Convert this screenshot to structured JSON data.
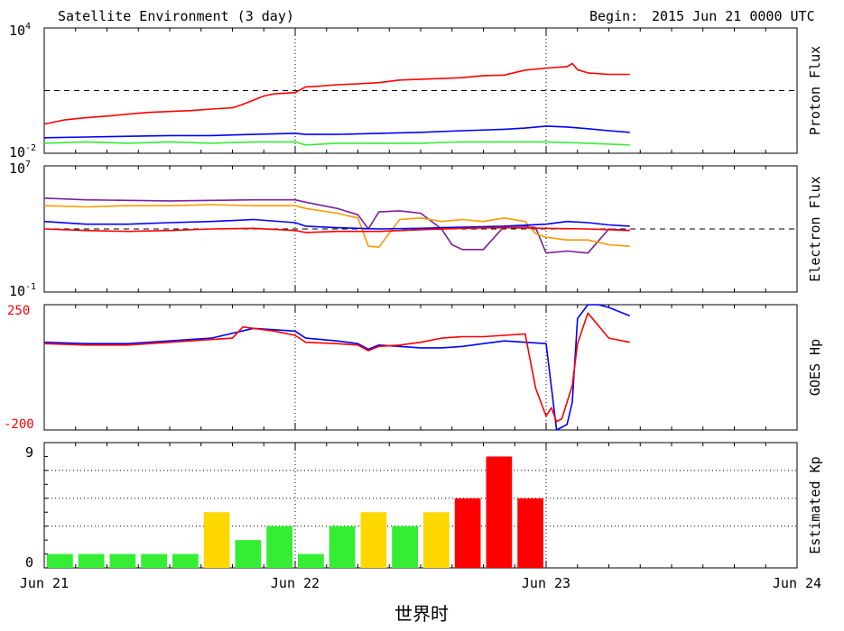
{
  "header": {
    "title": "Satellite Environment (3 day)",
    "begin_label": "Begin:",
    "begin_value": "2015 Jun 21 0000 UTC"
  },
  "xaxis": {
    "tick_labels": [
      "Jun 21",
      "Jun 22",
      "Jun 23",
      "Jun 24"
    ],
    "title": "世界时"
  },
  "chart_data": [
    {
      "type": "line",
      "panel": "proton",
      "ylabel": "Proton Flux",
      "y_scale": "log",
      "ylim": [
        0.01,
        10000
      ],
      "tick_label_top": {
        "base": "10",
        "exp": "4"
      },
      "tick_label_bottom": {
        "base": "10",
        "exp": "-2"
      },
      "threshold": 10,
      "x_unit": "hours since Jun 21 0000 UTC",
      "xlim": [
        0,
        72
      ],
      "gap": [
        23.9,
        24.5
      ],
      "series": [
        {
          "color": "#ff0000",
          "x": [
            0,
            2,
            4,
            6,
            8,
            10,
            12,
            14,
            16,
            18,
            19,
            20,
            21,
            22,
            23,
            24,
            25,
            26,
            28,
            30,
            32,
            34,
            36,
            38,
            40,
            42,
            44,
            46,
            48,
            50,
            50.5,
            51,
            52,
            54,
            56
          ],
          "y": [
            0.25,
            0.4,
            0.5,
            0.6,
            0.75,
            0.9,
            1.0,
            1.1,
            1.3,
            1.5,
            2.2,
            3.5,
            5.5,
            7,
            7.5,
            8,
            15,
            16,
            19,
            21,
            24,
            32,
            35,
            38,
            42,
            52,
            55,
            95,
            120,
            140,
            200,
            100,
            70,
            60,
            60
          ]
        },
        {
          "color": "#0000ff",
          "x": [
            0,
            4,
            8,
            12,
            16,
            20,
            24,
            25,
            28,
            32,
            36,
            40,
            44,
            46,
            48,
            50,
            52,
            54,
            56
          ],
          "y": [
            0.055,
            0.06,
            0.065,
            0.07,
            0.07,
            0.08,
            0.09,
            0.08,
            0.08,
            0.09,
            0.1,
            0.12,
            0.14,
            0.16,
            0.2,
            0.18,
            0.15,
            0.12,
            0.1
          ]
        },
        {
          "color": "#33ee33",
          "x": [
            0,
            4,
            8,
            12,
            16,
            20,
            24,
            25,
            28,
            32,
            36,
            40,
            44,
            48,
            52,
            56
          ],
          "y": [
            0.03,
            0.035,
            0.03,
            0.035,
            0.03,
            0.035,
            0.035,
            0.025,
            0.03,
            0.03,
            0.03,
            0.035,
            0.035,
            0.035,
            0.03,
            0.025
          ]
        }
      ]
    },
    {
      "type": "line",
      "panel": "electron",
      "ylabel": "Electron Flux",
      "y_scale": "log",
      "ylim": [
        0.1,
        10000000
      ],
      "tick_label_top": {
        "base": "10",
        "exp": "7"
      },
      "tick_label_bottom": {
        "base": "10",
        "exp": "-1"
      },
      "threshold": 1000,
      "x_unit": "hours since Jun 21 0000 UTC",
      "xlim": [
        0,
        72
      ],
      "gap": [
        23.9,
        24.5
      ],
      "series": [
        {
          "color": "#7a1fa2",
          "x": [
            0,
            4,
            8,
            12,
            16,
            20,
            24,
            25,
            28,
            30,
            31,
            32,
            34,
            36,
            38,
            39,
            40,
            42,
            44,
            46,
            47,
            48,
            50,
            52,
            54,
            56
          ],
          "y": [
            90000,
            70000,
            65000,
            60000,
            65000,
            70000,
            70000,
            50000,
            20000,
            8000,
            1000,
            12000,
            14000,
            10000,
            1000,
            100,
            50,
            50,
            1500,
            1500,
            1200,
            30,
            40,
            30,
            1000,
            800
          ]
        },
        {
          "color": "#ff9900",
          "x": [
            0,
            4,
            8,
            12,
            16,
            20,
            24,
            25,
            28,
            30,
            31,
            32,
            34,
            36,
            38,
            40,
            42,
            44,
            46,
            47,
            48,
            50,
            52,
            54,
            56
          ],
          "y": [
            30000,
            25000,
            30000,
            30000,
            35000,
            30000,
            30000,
            20000,
            10000,
            5000,
            80,
            70,
            4000,
            5000,
            3000,
            4000,
            3000,
            5000,
            3000,
            500,
            300,
            200,
            200,
            100,
            80
          ]
        },
        {
          "color": "#0000ff",
          "x": [
            0,
            4,
            8,
            12,
            16,
            20,
            24,
            25,
            28,
            32,
            36,
            40,
            44,
            48,
            50,
            52,
            54,
            56
          ],
          "y": [
            3000,
            2000,
            2000,
            2500,
            3000,
            4000,
            2500,
            1500,
            1200,
            1000,
            1100,
            1300,
            1500,
            2000,
            3000,
            2500,
            1800,
            1500
          ]
        },
        {
          "color": "#ff0000",
          "x": [
            0,
            4,
            8,
            12,
            16,
            20,
            24,
            25,
            28,
            32,
            36,
            40,
            44,
            48,
            52,
            54,
            56
          ],
          "y": [
            1000,
            800,
            700,
            800,
            1000,
            1100,
            800,
            600,
            700,
            700,
            900,
            1100,
            1200,
            1100,
            1000,
            900,
            800
          ]
        }
      ]
    },
    {
      "type": "line",
      "panel": "goes_hp",
      "ylabel": "GOES Hp",
      "ylim": [
        -200,
        250
      ],
      "tick_label_top": "250",
      "tick_label_bottom": "-200",
      "tick_label_color": "#ff0000",
      "x_unit": "hours since Jun 21 0000 UTC",
      "xlim": [
        0,
        72
      ],
      "gap": [
        23.9,
        24.5
      ],
      "series": [
        {
          "color": "#0000ff",
          "x": [
            0,
            4,
            8,
            12,
            16,
            20,
            22,
            24,
            25,
            28,
            30,
            31,
            32,
            34,
            36,
            38,
            40,
            42,
            44,
            46,
            48,
            49,
            50,
            50.5,
            51,
            52,
            53,
            54,
            55,
            56
          ],
          "y": [
            115,
            110,
            110,
            120,
            130,
            165,
            160,
            155,
            130,
            120,
            110,
            90,
            105,
            100,
            95,
            95,
            100,
            110,
            120,
            115,
            110,
            -200,
            -180,
            -100,
            200,
            250,
            250,
            240,
            225,
            210
          ]
        },
        {
          "color": "#ff0000",
          "x": [
            0,
            4,
            8,
            12,
            16,
            18,
            19,
            20,
            22,
            24,
            25,
            28,
            30,
            31,
            32,
            34,
            36,
            38,
            40,
            42,
            44,
            46,
            47,
            48,
            48.5,
            49,
            49.5,
            50,
            50.5,
            51,
            52,
            54,
            56
          ],
          "y": [
            110,
            105,
            105,
            115,
            125,
            130,
            170,
            165,
            155,
            140,
            115,
            110,
            105,
            85,
            100,
            105,
            115,
            130,
            135,
            135,
            140,
            145,
            -50,
            -150,
            -120,
            -170,
            -160,
            -100,
            -40,
            110,
            220,
            130,
            115
          ]
        }
      ]
    },
    {
      "type": "bar",
      "panel": "kp",
      "ylabel": "Estimated Kp",
      "ylim": [
        0,
        9
      ],
      "tick_label_top": "9",
      "tick_label_bottom": "0",
      "gridlines": [
        3,
        5,
        7,
        9
      ],
      "x_unit": "hours since Jun 21 0000 UTC",
      "bin_hours": 3,
      "values": [
        1,
        1,
        1,
        1,
        1,
        4,
        2,
        3,
        1,
        3,
        4,
        3,
        4,
        5,
        8,
        5
      ],
      "colors": [
        "#33ee33",
        "#33ee33",
        "#33ee33",
        "#33ee33",
        "#33ee33",
        "#ffd700",
        "#33ee33",
        "#33ee33",
        "#33ee33",
        "#33ee33",
        "#ffd700",
        "#33ee33",
        "#ffd700",
        "#ff0000",
        "#ff0000",
        "#ff0000"
      ]
    }
  ]
}
